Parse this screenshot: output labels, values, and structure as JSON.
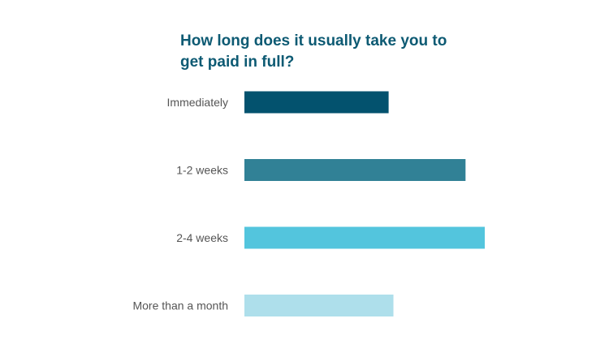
{
  "chart_data": {
    "type": "bar",
    "orientation": "horizontal",
    "title": "How long does it usually take you to get paid in full?",
    "categories": [
      "Immediately",
      "1-2 weeks",
      "2-4 weeks",
      "More than a month"
    ],
    "values": [
      30,
      46,
      50,
      31
    ],
    "colors": [
      "#03526e",
      "#318196",
      "#53c5dd",
      "#aedfeb"
    ],
    "xlim": [
      0,
      50
    ],
    "grid": false,
    "legend": "none"
  }
}
